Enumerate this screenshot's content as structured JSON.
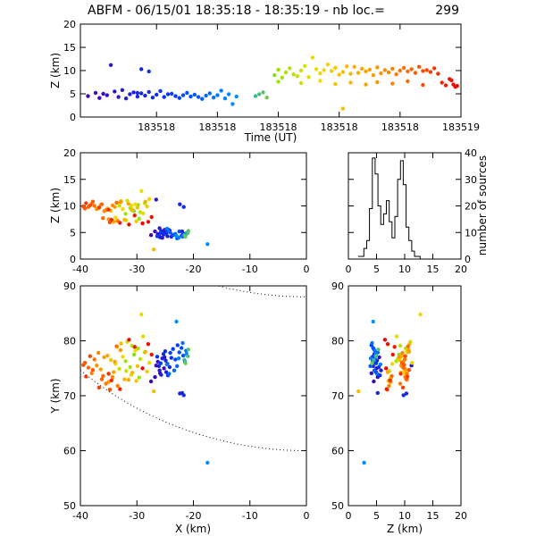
{
  "title": "ABFM - 06/15/01 18:35:18 - 18:35:19 - nb loc.=",
  "count": "299",
  "chart_data": [
    {
      "type": "scatter",
      "panel": "time-height",
      "xlabel": "Time (UT)",
      "ylabel": "Z (km)",
      "xlim": [
        183518.0,
        183519.0
      ],
      "ylim": [
        0,
        20
      ],
      "xtick_labels": [
        "183518",
        "183518",
        "183518",
        "183518",
        "183518",
        "183519"
      ],
      "yticks": [
        0,
        5,
        10,
        15,
        20
      ]
    },
    {
      "type": "scatter",
      "panel": "x-z",
      "xlabel": "",
      "ylabel": "Z (km)",
      "xlim": [
        -40,
        0
      ],
      "ylim": [
        0,
        20
      ],
      "xticks": [
        -40,
        -30,
        -20,
        -10,
        0
      ],
      "yticks": [
        0,
        5,
        10,
        15,
        20
      ]
    },
    {
      "type": "line",
      "panel": "height-histogram",
      "xlabel": "",
      "ylabel": "number of sources",
      "xlim": [
        0,
        20
      ],
      "ylim": [
        0,
        40
      ],
      "xticks": [
        0,
        5,
        10,
        15,
        20
      ],
      "yticks": [
        0,
        10,
        20,
        30,
        40
      ],
      "bin_width": 0.5,
      "x": [
        2.0,
        2.5,
        3.0,
        3.5,
        4.0,
        4.5,
        5.0,
        5.5,
        6.0,
        6.5,
        7.0,
        7.5,
        8.0,
        8.5,
        9.0,
        9.5,
        10.0,
        10.5,
        11.0,
        11.5,
        12.0,
        12.5,
        13.0
      ],
      "values": [
        1,
        1,
        4,
        7,
        19,
        38,
        32,
        20,
        13,
        17,
        22,
        14,
        8,
        16,
        30,
        37,
        28,
        12,
        7,
        3,
        1,
        1,
        0
      ]
    },
    {
      "type": "scatter",
      "panel": "plan-view",
      "xlabel": "X (km)",
      "ylabel": "Y (km)",
      "xlim": [
        -40,
        0
      ],
      "ylim": [
        50,
        90
      ],
      "xticks": [
        -40,
        -30,
        -20,
        -10,
        0
      ],
      "yticks": [
        50,
        60,
        70,
        80,
        90
      ]
    },
    {
      "type": "scatter",
      "panel": "z-y",
      "xlabel": "Z (km)",
      "ylabel": "",
      "xlim": [
        0,
        20
      ],
      "ylim": [
        50,
        90
      ],
      "xticks": [
        0,
        5,
        10,
        15,
        20
      ],
      "yticks": [
        50,
        60,
        70,
        80,
        90
      ]
    }
  ],
  "sources": {
    "fields": [
      "t",
      "x",
      "y",
      "z"
    ],
    "points": [
      [
        0.02,
        -27.5,
        72.6,
        4.5
      ],
      [
        0.04,
        -26.8,
        73.4,
        5.2
      ],
      [
        0.05,
        -25.9,
        74.1,
        4.1
      ],
      [
        0.06,
        -25.2,
        75.0,
        5.0
      ],
      [
        0.07,
        -26.3,
        76.2,
        4.7
      ],
      [
        0.09,
        -25.1,
        77.0,
        5.5
      ],
      [
        0.1,
        -24.6,
        75.8,
        4.3
      ],
      [
        0.11,
        -26.0,
        74.6,
        5.8
      ],
      [
        0.12,
        -25.5,
        76.8,
        4.0
      ],
      [
        0.13,
        -24.8,
        74.3,
        4.9
      ],
      [
        0.14,
        -25.7,
        73.8,
        5.3
      ],
      [
        0.15,
        -26.1,
        75.4,
        4.4
      ],
      [
        0.16,
        -24.9,
        76.4,
        5.1
      ],
      [
        0.17,
        -25.3,
        77.6,
        4.6
      ],
      [
        0.18,
        -24.2,
        75.2,
        5.4
      ],
      [
        0.19,
        -23.9,
        76.9,
        4.2
      ],
      [
        0.2,
        -25.0,
        78.1,
        4.8
      ],
      [
        0.21,
        -24.5,
        73.7,
        5.6
      ],
      [
        0.22,
        -26.4,
        77.1,
        4.3
      ],
      [
        0.23,
        -25.8,
        75.9,
        4.9
      ],
      [
        0.08,
        -26.6,
        75.5,
        11.2
      ],
      [
        0.16,
        -22.4,
        70.4,
        10.3
      ],
      [
        0.18,
        -21.7,
        70.1,
        9.8
      ],
      [
        0.24,
        -24.1,
        77.8,
        5.0
      ],
      [
        0.25,
        -23.6,
        78.5,
        4.5
      ],
      [
        0.26,
        -22.8,
        79.2,
        4.1
      ],
      [
        0.27,
        -23.2,
        76.6,
        4.7
      ],
      [
        0.28,
        -22.5,
        77.9,
        5.2
      ],
      [
        0.29,
        -22.1,
        78.7,
        4.4
      ],
      [
        0.3,
        -21.8,
        77.3,
        4.8
      ],
      [
        0.31,
        -21.5,
        76.2,
        4.3
      ],
      [
        0.32,
        -22.9,
        75.4,
        3.9
      ],
      [
        0.33,
        -23.4,
        74.6,
        4.6
      ],
      [
        0.34,
        -24.3,
        74.0,
        5.1
      ],
      [
        0.35,
        -21.9,
        79.6,
        4.2
      ],
      [
        0.36,
        -21.3,
        78.2,
        4.7
      ],
      [
        0.37,
        -24.7,
        75.7,
        5.7
      ],
      [
        0.38,
        -22.6,
        76.8,
        4.0
      ],
      [
        0.39,
        -21.2,
        77.6,
        4.9
      ],
      [
        0.4,
        -17.5,
        57.8,
        2.8
      ],
      [
        0.41,
        -23.0,
        83.5,
        4.4
      ],
      [
        0.15,
        -22.0,
        70.5,
        5.2
      ],
      [
        0.46,
        -21.6,
        76.5,
        4.5
      ],
      [
        0.47,
        -21.0,
        77.2,
        4.9
      ],
      [
        0.48,
        -20.9,
        78.4,
        5.3
      ],
      [
        0.49,
        -21.4,
        75.9,
        4.2
      ],
      [
        0.51,
        -30.5,
        77.5,
        9.0
      ],
      [
        0.52,
        -29.8,
        78.6,
        10.2
      ],
      [
        0.53,
        -32.0,
        76.3,
        8.5
      ],
      [
        0.54,
        -31.2,
        75.2,
        9.6
      ],
      [
        0.55,
        -28.6,
        77.9,
        10.5
      ],
      [
        0.56,
        -30.9,
        79.1,
        9.2
      ],
      [
        0.57,
        -29.4,
        76.7,
        8.8
      ],
      [
        0.58,
        -33.1,
        74.9,
        10.0
      ],
      [
        0.59,
        -31.7,
        79.8,
        11.0
      ],
      [
        0.6,
        -28.9,
        80.8,
        8.6
      ],
      [
        0.61,
        -29.2,
        84.8,
        12.8
      ],
      [
        0.62,
        -30.3,
        78.2,
        10.3
      ],
      [
        0.63,
        -32.5,
        77.1,
        9.4
      ],
      [
        0.64,
        -31.0,
        73.8,
        10.1
      ],
      [
        0.65,
        -27.8,
        76.0,
        11.3
      ],
      [
        0.66,
        -28.2,
        74.4,
        9.9
      ],
      [
        0.67,
        -33.5,
        78.9,
        10.6
      ],
      [
        0.68,
        -34.6,
        76.5,
        9.1
      ],
      [
        0.69,
        -29.9,
        75.4,
        9.7
      ],
      [
        0.7,
        -32.8,
        79.5,
        10.9
      ],
      [
        0.71,
        -30.8,
        74.2,
        9.3
      ],
      [
        0.72,
        -28.5,
        78.0,
        10.8
      ],
      [
        0.73,
        -35.2,
        77.3,
        9.5
      ],
      [
        0.74,
        -31.5,
        72.9,
        10.4
      ],
      [
        0.52,
        -29.6,
        73.3,
        7.6
      ],
      [
        0.58,
        -31.9,
        74.5,
        7.3
      ],
      [
        0.63,
        -33.8,
        75.8,
        7.8
      ],
      [
        0.67,
        -30.1,
        72.7,
        7.1
      ],
      [
        0.71,
        -32.2,
        73.0,
        7.4
      ],
      [
        0.75,
        -34.1,
        74.3,
        7.0
      ],
      [
        0.78,
        -35.0,
        72.5,
        7.5
      ],
      [
        0.82,
        -33.4,
        71.8,
        7.2
      ],
      [
        0.69,
        -27.0,
        70.8,
        1.8
      ],
      [
        0.86,
        -36.0,
        73.6,
        7.7
      ],
      [
        0.9,
        -34.8,
        71.1,
        6.9
      ],
      [
        0.75,
        -33.9,
        76.2,
        9.8
      ],
      [
        0.76,
        -36.4,
        74.8,
        10.2
      ],
      [
        0.77,
        -35.8,
        77.0,
        9.0
      ],
      [
        0.78,
        -32.9,
        78.3,
        10.7
      ],
      [
        0.79,
        -37.1,
        75.5,
        9.4
      ],
      [
        0.8,
        -34.3,
        73.4,
        10.1
      ],
      [
        0.81,
        -36.8,
        77.8,
        9.6
      ],
      [
        0.82,
        -38.0,
        74.1,
        10.4
      ],
      [
        0.83,
        -35.5,
        72.2,
        9.2
      ],
      [
        0.84,
        -37.5,
        76.6,
        10.0
      ],
      [
        0.85,
        -33.6,
        79.0,
        10.6
      ],
      [
        0.86,
        -38.6,
        75.1,
        9.8
      ],
      [
        0.87,
        -36.2,
        73.0,
        10.3
      ],
      [
        0.88,
        -39.2,
        76.0,
        9.5
      ],
      [
        0.89,
        -37.8,
        74.7,
        10.8
      ],
      [
        0.9,
        -39.5,
        75.6,
        9.9
      ],
      [
        0.91,
        -38.3,
        77.2,
        10.1
      ],
      [
        0.92,
        -36.7,
        71.5,
        9.7
      ],
      [
        0.93,
        -39.0,
        73.5,
        10.5
      ],
      [
        0.94,
        -35.0,
        74.0,
        9.3
      ],
      [
        0.95,
        -34.5,
        72.8,
        7.4
      ],
      [
        0.96,
        -33.0,
        71.2,
        6.8
      ],
      [
        0.97,
        -30.4,
        78.9,
        8.2
      ],
      [
        0.98,
        -28.0,
        79.4,
        7.0
      ],
      [
        0.99,
        -29.0,
        75.0,
        6.7
      ],
      [
        0.975,
        -27.4,
        77.5,
        7.9
      ],
      [
        0.985,
        -31.4,
        80.2,
        6.5
      ]
    ]
  }
}
